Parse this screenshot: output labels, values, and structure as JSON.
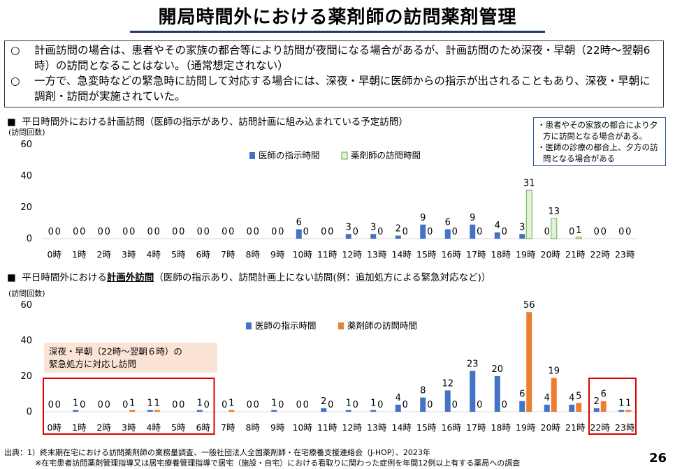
{
  "title": "開局時間外における薬剤師の訪問薬剤管理",
  "summary": [
    {
      "bullet": "○",
      "text": "計画訪問の場合は、患者やその家族の都合等により訪問が夜間になる場合があるが、計画訪問のため深夜・早朝（22時～翌朝6時）の訪問となることはない。（通常想定されない）"
    },
    {
      "bullet": "○",
      "text": "一方で、急変時などの緊急時に訪問して対応する場合には、深夜・早朝に医師からの指示が出されることもあり、深夜・早朝に調剤・訪問が実施されていた。"
    }
  ],
  "chart1_heading": {
    "marker": "■",
    "text": "平日時間外における計画訪問（医師の指示があり、訪問計画に組み込まれている予定訪問）"
  },
  "chart2_heading": {
    "marker": "■",
    "pre": "平日時間外における",
    "underlined": "計画外訪問",
    "post": "（医師の指示あり、訪問計画上にない訪問(例：追加処方による緊急対応など)）"
  },
  "note": [
    "・患者やその家族の都合により夕方に訪問となる場合がある。",
    "・医師の診療の都合上、夕方の訪問となる場合がある"
  ],
  "emergency_label": [
    "深夜・早朝（22時～翌朝６時）の",
    "緊急処方に対応し訪問"
  ],
  "source": [
    "出典：1）終末期在宅における訪問薬剤師の業務量調査、一般社団法人全国薬剤師・在宅療養支援連絡会（J-HOP）、2023年",
    "※在宅患者訪問薬剤管理指導又は居宅療養管理指導で居宅（施設・自宅）における看取りに関わった症例を年間12例以上有する薬局への調査"
  ],
  "page_number": "26",
  "chart_data": [
    {
      "type": "bar",
      "ylabel": "(訪問回数)",
      "ylim": [
        0,
        60
      ],
      "yticks": [
        0,
        20,
        40,
        60
      ],
      "categories": [
        "0時",
        "1時",
        "2時",
        "3時",
        "4時",
        "5時",
        "6時",
        "7時",
        "8時",
        "9時",
        "10時",
        "11時",
        "12時",
        "13時",
        "14時",
        "15時",
        "16時",
        "17時",
        "18時",
        "19時",
        "20時",
        "21時",
        "22時",
        "23時"
      ],
      "series": [
        {
          "name": "医師の指示時間",
          "color": "#4472c4",
          "values": [
            0,
            0,
            0,
            0,
            0,
            0,
            0,
            0,
            0,
            0,
            6,
            0,
            3,
            3,
            2,
            9,
            6,
            9,
            4,
            3,
            0,
            0,
            0,
            0
          ]
        },
        {
          "name": "薬剤師の訪問時間",
          "color": "#e2efd9",
          "stroke": "#70ad47",
          "values": [
            0,
            0,
            0,
            0,
            0,
            0,
            0,
            0,
            0,
            0,
            0,
            0,
            0,
            0,
            0,
            0,
            0,
            0,
            0,
            31,
            13,
            1,
            0,
            0
          ]
        }
      ],
      "legend": "top-center"
    },
    {
      "type": "bar",
      "ylabel": "(訪問回数)",
      "ylim": [
        0,
        60
      ],
      "yticks": [
        0,
        20,
        40,
        60
      ],
      "categories": [
        "0時",
        "1時",
        "2時",
        "3時",
        "4時",
        "5時",
        "6時",
        "7時",
        "8時",
        "9時",
        "10時",
        "11時",
        "12時",
        "13時",
        "14時",
        "15時",
        "16時",
        "17時",
        "18時",
        "19時",
        "20時",
        "21時",
        "22時",
        "23時"
      ],
      "series": [
        {
          "name": "医師の指示時間",
          "color": "#4472c4",
          "values": [
            0,
            1,
            0,
            0,
            1,
            0,
            1,
            0,
            0,
            1,
            0,
            2,
            1,
            1,
            4,
            8,
            12,
            23,
            20,
            6,
            4,
            4,
            2,
            1
          ]
        },
        {
          "name": "薬剤師の訪問時間",
          "color": "#ed7d31",
          "values": [
            0,
            0,
            0,
            1,
            1,
            0,
            0,
            1,
            0,
            0,
            0,
            0,
            0,
            0,
            0,
            0,
            0,
            0,
            0,
            56,
            19,
            5,
            6,
            1
          ]
        }
      ],
      "legend": "top-center",
      "highlight_groups": [
        [
          "0時",
          "6時"
        ],
        [
          "22時",
          "23時"
        ]
      ]
    }
  ]
}
